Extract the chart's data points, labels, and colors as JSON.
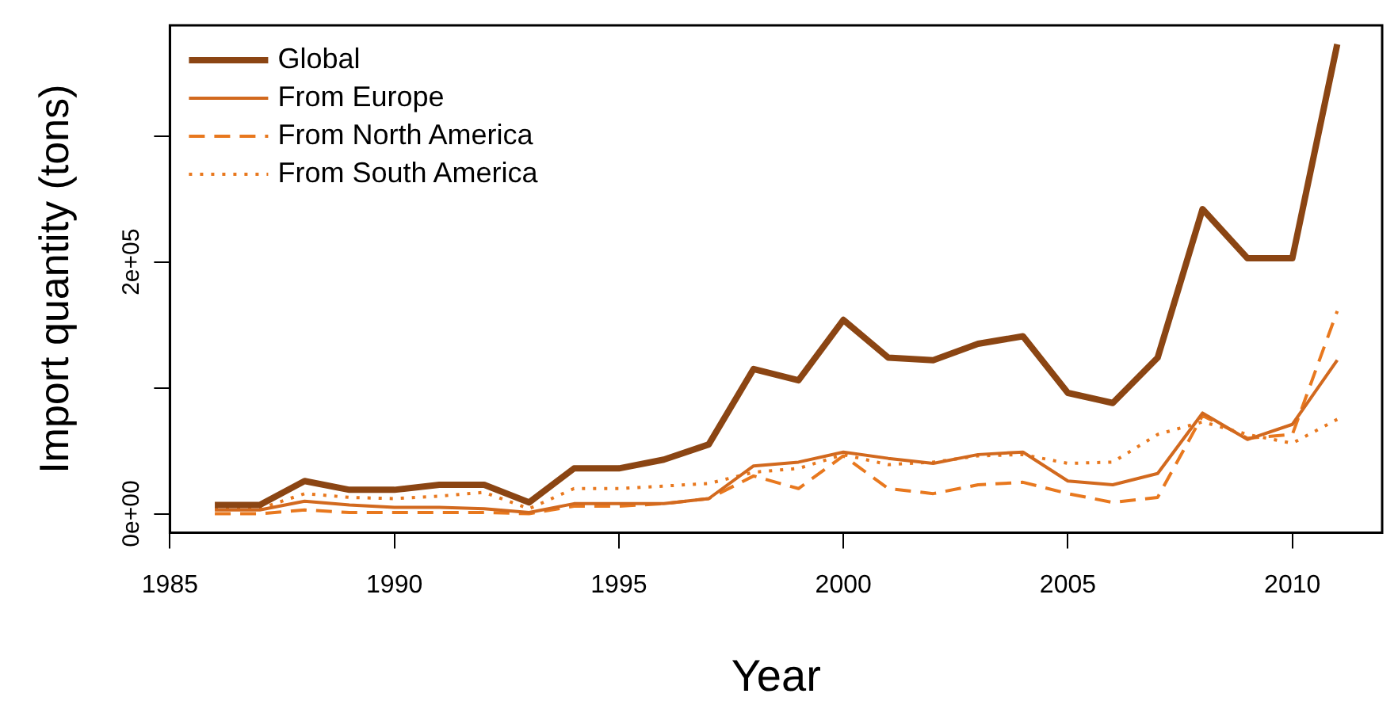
{
  "chart_data": {
    "type": "line",
    "xlabel": "Year",
    "ylabel": "Import quantity (tons)",
    "x": [
      1986,
      1987,
      1988,
      1989,
      1990,
      1991,
      1992,
      1993,
      1994,
      1995,
      1996,
      1997,
      1998,
      1999,
      2000,
      2001,
      2002,
      2003,
      2004,
      2005,
      2006,
      2007,
      2008,
      2009,
      2010,
      2011
    ],
    "series": [
      {
        "name": "Global",
        "color": "#8b4513",
        "line_style": "solid",
        "values": [
          7000,
          7000,
          26000,
          19000,
          19000,
          23000,
          23000,
          9000,
          36000,
          36000,
          43000,
          55000,
          115000,
          106000,
          154000,
          124000,
          122000,
          135000,
          141000,
          96000,
          88000,
          124000,
          242000,
          203000,
          203000,
          373000
        ]
      },
      {
        "name": "From Europe",
        "color": "#d2691e",
        "line_style": "solid",
        "values": [
          3000,
          3000,
          10000,
          7000,
          5000,
          5000,
          4000,
          1000,
          8000,
          8000,
          8000,
          12000,
          38000,
          41000,
          49000,
          44000,
          40000,
          47000,
          49000,
          26000,
          23000,
          32000,
          80000,
          59000,
          71000,
          122000
        ]
      },
      {
        "name": "From North America",
        "color": "#e8781e",
        "line_style": "dashed",
        "values": [
          0,
          0,
          3000,
          1000,
          1000,
          1000,
          1000,
          0,
          6000,
          6000,
          8000,
          12000,
          30000,
          20000,
          46000,
          20000,
          16000,
          23000,
          25000,
          16000,
          9000,
          13000,
          78000,
          60000,
          63000,
          161000
        ]
      },
      {
        "name": "From South America",
        "color": "#e8781e",
        "line_style": "dotted",
        "values": [
          4000,
          4000,
          16000,
          13000,
          12000,
          14000,
          17000,
          4000,
          20000,
          20000,
          22000,
          24000,
          33000,
          36000,
          47000,
          39000,
          41000,
          46000,
          47000,
          40000,
          41000,
          63000,
          73000,
          63000,
          56000,
          75000
        ]
      }
    ],
    "xlim": [
      1985,
      2012
    ],
    "xticks": [
      1985,
      1990,
      1995,
      2000,
      2005,
      2010
    ],
    "ylim": [
      -15000,
      388000
    ],
    "yticks": [
      {
        "value": 0,
        "label": "0e+00"
      },
      {
        "value": 100000,
        "label": null
      },
      {
        "value": 200000,
        "label": "2e+05"
      },
      {
        "value": 300000,
        "label": null
      }
    ],
    "grid": false,
    "legend": "top left",
    "marker": "none"
  }
}
